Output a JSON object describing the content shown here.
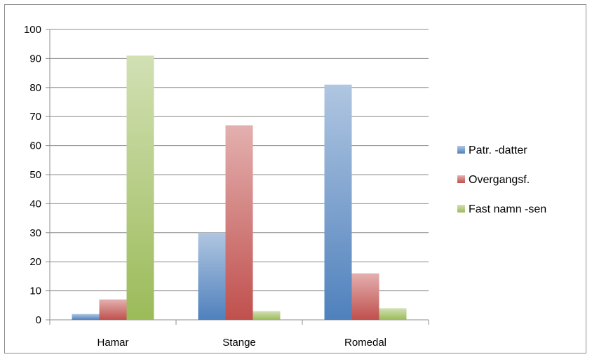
{
  "chart_data": {
    "type": "bar",
    "categories": [
      "Hamar",
      "Stange",
      "Romedal"
    ],
    "series": [
      {
        "name": "Patr. -datter",
        "values": [
          2,
          30,
          81
        ],
        "color": "#4f81bd"
      },
      {
        "name": "Overgangsf.",
        "values": [
          7,
          67,
          16
        ],
        "color": "#c0504d"
      },
      {
        "name": "Fast namn -sen",
        "values": [
          91,
          3,
          4
        ],
        "color": "#9bbb59"
      }
    ],
    "ylim": [
      0,
      100
    ],
    "yticks": [
      0,
      10,
      20,
      30,
      40,
      50,
      60,
      70,
      80,
      90,
      100
    ],
    "grid": true,
    "legend_position": "right"
  }
}
